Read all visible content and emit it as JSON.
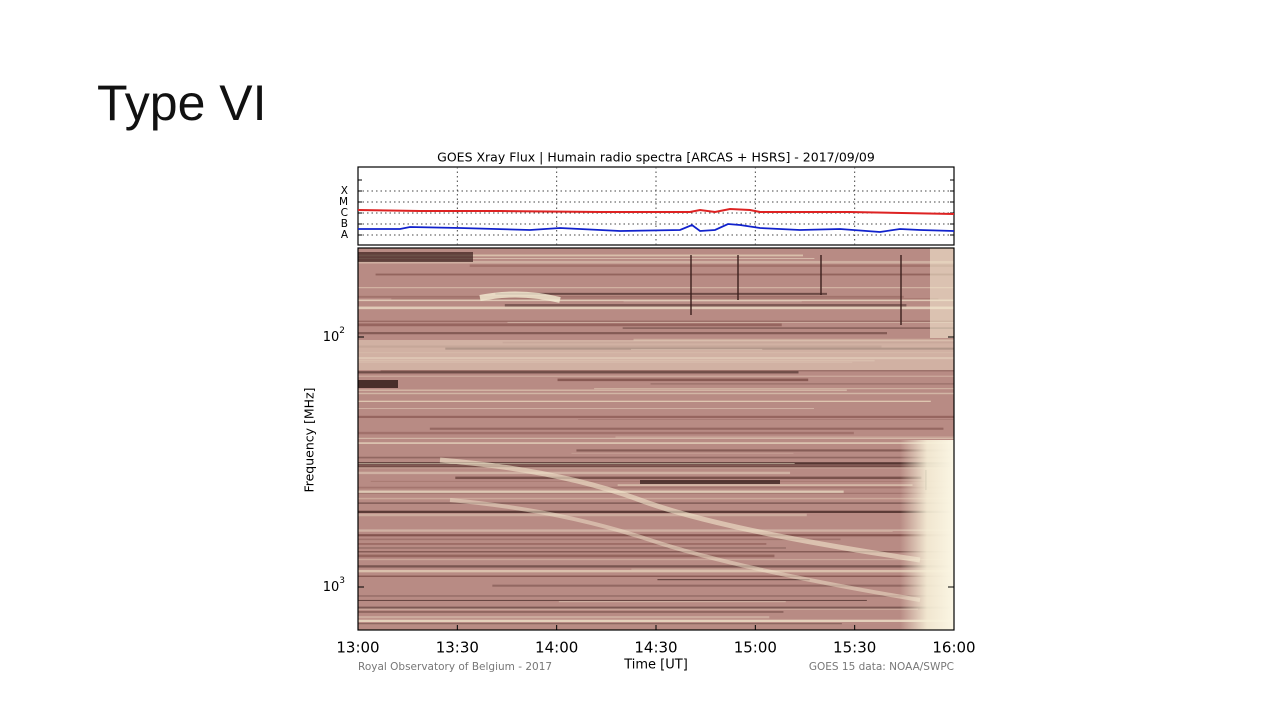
{
  "slide": {
    "title": "Type VI"
  },
  "figure": {
    "title": "GOES Xray Flux | Humain radio spectra [ARCAS + HSRS] - 2017/09/09",
    "xray_levels": [
      "X",
      "M",
      "C",
      "B",
      "A"
    ],
    "y_ticks": [
      {
        "base": "10",
        "exponent": "2"
      },
      {
        "base": "10",
        "exponent": "3"
      }
    ],
    "y_label": "Frequency [MHz]",
    "x_ticks": [
      "13:00",
      "13:30",
      "14:00",
      "14:30",
      "15:00",
      "15:30",
      "16:00"
    ],
    "x_label": "Time [UT]",
    "credit_left": "Royal Observatory of Belgium - 2017",
    "credit_right": "GOES 15 data: NOAA/SWPC"
  }
}
